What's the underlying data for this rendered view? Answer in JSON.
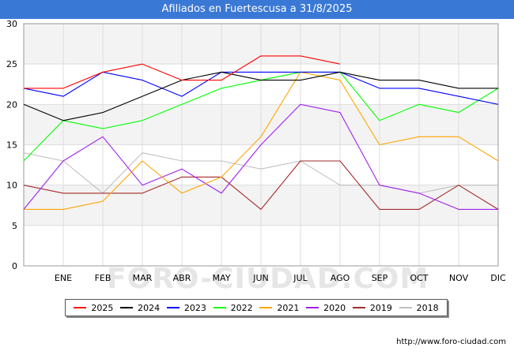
{
  "chart_data": {
    "type": "line",
    "title": "Afiliados en Fuertescusa a 31/8/2025",
    "categories": [
      "",
      "ENE",
      "FEB",
      "MAR",
      "ABR",
      "MAY",
      "JUN",
      "JUL",
      "AGO",
      "SEP",
      "OCT",
      "NOV",
      "DIC"
    ],
    "ylim": [
      0,
      30
    ],
    "yticks": [
      0,
      5,
      10,
      15,
      20,
      25,
      30
    ],
    "xlabel": "",
    "ylabel": "",
    "legend_position": "bottom",
    "series": [
      {
        "name": "2025",
        "color": "#ff0000",
        "values": [
          22,
          22,
          24,
          25,
          23,
          23,
          26,
          26,
          25,
          null,
          null,
          null,
          null
        ]
      },
      {
        "name": "2024",
        "color": "#000000",
        "values": [
          20,
          18,
          19,
          21,
          23,
          24,
          23,
          23,
          24,
          23,
          23,
          22,
          22
        ]
      },
      {
        "name": "2023",
        "color": "#0000ff",
        "values": [
          22,
          21,
          24,
          23,
          21,
          24,
          24,
          24,
          24,
          22,
          22,
          21,
          20
        ]
      },
      {
        "name": "2022",
        "color": "#00ff00",
        "values": [
          13,
          18,
          17,
          18,
          20,
          22,
          23,
          24,
          24,
          18,
          20,
          19,
          22
        ]
      },
      {
        "name": "2021",
        "color": "#ffa500",
        "values": [
          7,
          7,
          8,
          13,
          9,
          11,
          16,
          24,
          23,
          15,
          16,
          16,
          13
        ]
      },
      {
        "name": "2020",
        "color": "#a020f0",
        "values": [
          7,
          13,
          16,
          10,
          12,
          9,
          15,
          20,
          19,
          10,
          9,
          7,
          7
        ]
      },
      {
        "name": "2019",
        "color": "#a52a2a",
        "values": [
          10,
          9,
          9,
          9,
          11,
          11,
          7,
          13,
          13,
          7,
          7,
          10,
          7
        ]
      },
      {
        "name": "2018",
        "color": "#c0c0c0",
        "values": [
          14,
          13,
          9,
          14,
          13,
          13,
          12,
          13,
          10,
          10,
          9,
          10,
          10
        ]
      }
    ]
  },
  "watermark": "FORO-CIUDAD.COM",
  "source": "http://www.foro-ciudad.com"
}
